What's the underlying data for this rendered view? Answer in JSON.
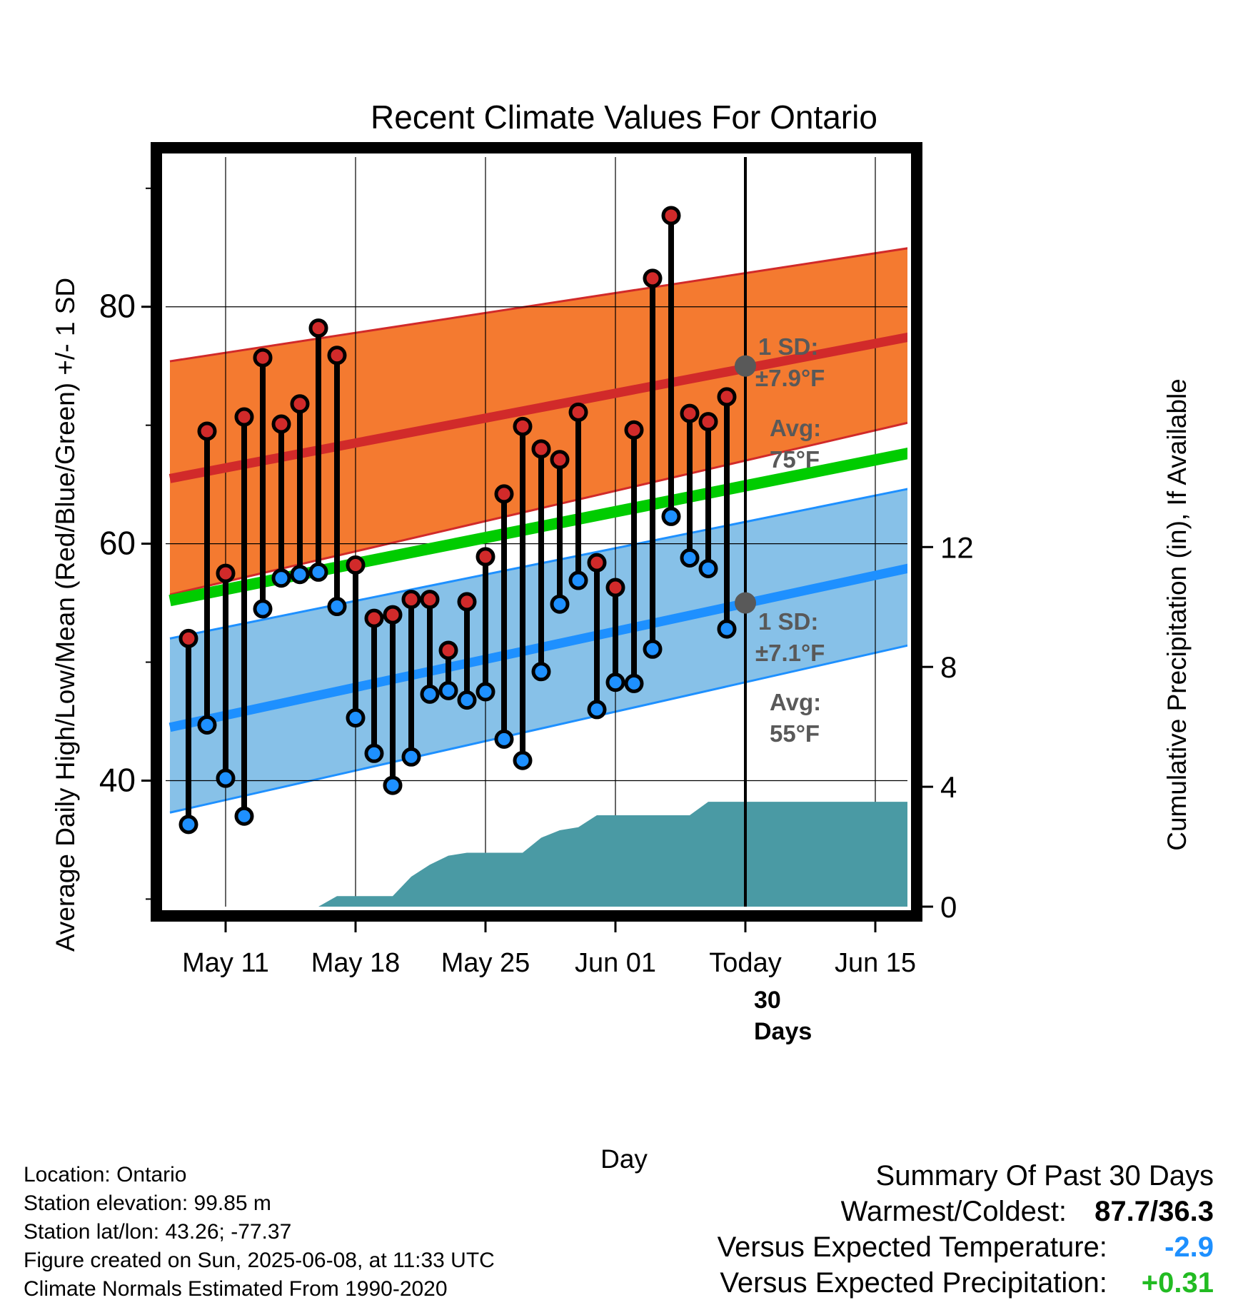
{
  "chart_data": {
    "type": "line",
    "title": "Recent Climate Values For Ontario",
    "xlabel": "Day",
    "ylabel_left": "Average Daily High/Low/Mean (Red/Blue/Green) +/- 1 SD",
    "ylabel_right": "Cumulative Precipitation (in), If Available",
    "x_tick_labels": [
      "May 11",
      "May 18",
      "May 25",
      "Jun 01",
      "Today",
      "Jun 15"
    ],
    "x_tick_dates": [
      "2025-05-11",
      "2025-05-18",
      "2025-05-25",
      "2025-06-01",
      "2025-06-08",
      "2025-06-15"
    ],
    "xlim": [
      "2025-05-08",
      "2025-06-17"
    ],
    "today": "2025-06-08",
    "today_window_label": "30 Days",
    "ylim_left": [
      29,
      93
    ],
    "yticks_left": [
      40,
      60,
      80
    ],
    "ylim_right": [
      0,
      25.3
    ],
    "yticks_right": [
      0,
      4,
      8,
      12
    ],
    "grid": true,
    "daily": {
      "dates": [
        "2025-05-09",
        "2025-05-10",
        "2025-05-11",
        "2025-05-12",
        "2025-05-13",
        "2025-05-14",
        "2025-05-15",
        "2025-05-16",
        "2025-05-17",
        "2025-05-18",
        "2025-05-19",
        "2025-05-20",
        "2025-05-21",
        "2025-05-22",
        "2025-05-23",
        "2025-05-24",
        "2025-05-25",
        "2025-05-26",
        "2025-05-27",
        "2025-05-28",
        "2025-05-29",
        "2025-05-30",
        "2025-05-31",
        "2025-06-01",
        "2025-06-02",
        "2025-06-03",
        "2025-06-04",
        "2025-06-05",
        "2025-06-06",
        "2025-06-07"
      ],
      "high": [
        52.0,
        69.5,
        57.5,
        70.7,
        75.7,
        70.1,
        71.8,
        78.2,
        75.9,
        58.2,
        53.7,
        54.0,
        55.3,
        55.3,
        51.0,
        55.1,
        58.9,
        64.2,
        69.9,
        68.0,
        67.1,
        71.1,
        58.4,
        56.3,
        69.6,
        82.4,
        87.7,
        71.0,
        70.3,
        72.4
      ],
      "low": [
        36.3,
        44.7,
        40.2,
        37.0,
        54.5,
        57.1,
        57.4,
        57.6,
        54.7,
        45.3,
        42.3,
        39.6,
        42.0,
        47.3,
        47.6,
        46.8,
        47.5,
        43.5,
        41.7,
        49.2,
        54.9,
        56.9,
        46.0,
        48.3,
        48.2,
        51.1,
        62.3,
        58.8,
        57.9,
        52.8
      ]
    },
    "normals": {
      "dates": [
        "2025-05-08",
        "2025-06-17"
      ],
      "avg_high": [
        65.5,
        77.5
      ],
      "avg_high_plus_1sd": [
        75.4,
        85.0
      ],
      "avg_high_minus_1sd": [
        55.7,
        70.3
      ],
      "avg_mean": [
        55.2,
        67.7
      ],
      "avg_low": [
        44.5,
        58.0
      ],
      "avg_low_plus_1sd": [
        52.0,
        64.7
      ],
      "avg_low_minus_1sd": [
        37.3,
        51.5
      ]
    },
    "cumulative_precip": {
      "dates": [
        "2025-05-16",
        "2025-05-17",
        "2025-05-18",
        "2025-05-19",
        "2025-05-20",
        "2025-05-21",
        "2025-05-22",
        "2025-05-23",
        "2025-05-24",
        "2025-05-25",
        "2025-05-26",
        "2025-05-27",
        "2025-05-28",
        "2025-05-29",
        "2025-05-30",
        "2025-05-31",
        "2025-06-01",
        "2025-06-02",
        "2025-06-03",
        "2025-06-04",
        "2025-06-05",
        "2025-06-06",
        "2025-06-17"
      ],
      "values": [
        0.0,
        0.35,
        0.35,
        0.35,
        0.35,
        1.0,
        1.4,
        1.7,
        1.8,
        1.8,
        1.8,
        1.8,
        2.3,
        2.55,
        2.65,
        3.05,
        3.05,
        3.05,
        3.05,
        3.05,
        3.05,
        3.5,
        3.5
      ]
    },
    "annotations": {
      "high_sd_label": "1 SD:",
      "high_sd_value": "±7.9°F",
      "high_avg_label": "Avg:",
      "high_avg_value": "75°F",
      "high_avg_at_today": 75,
      "low_sd_label": "1 SD:",
      "low_sd_value": "±7.1°F",
      "low_avg_label": "Avg:",
      "low_avg_value": "55°F",
      "low_avg_at_today": 55
    },
    "colors": {
      "high": "#d12a2a",
      "low": "#1e90ff",
      "mean": "#00cc00",
      "high_band": "#f47a30",
      "low_band": "#87c1e8",
      "precip": "#4a9aa4",
      "annotation": "#595959"
    }
  },
  "footer": {
    "location": "Location: Ontario",
    "elevation": "Station elevation: 99.85 m",
    "latlon": "Station lat/lon: 43.26; -77.37",
    "created": "Figure created on Sun, 2025-06-08, at 11:33 UTC",
    "normals": "Climate Normals Estimated From 1990-2020"
  },
  "summary": {
    "title": "Summary Of Past 30 Days",
    "warmest_coldest_label": "Warmest/Coldest:",
    "warmest_coldest_value": "87.7/36.3",
    "temp_label": "Versus Expected Temperature:",
    "temp_value": "-2.9",
    "temp_color": "#1e90ff",
    "precip_label": "Versus Expected Precipitation:",
    "precip_value": "+0.31",
    "precip_color": "#22bb22"
  }
}
